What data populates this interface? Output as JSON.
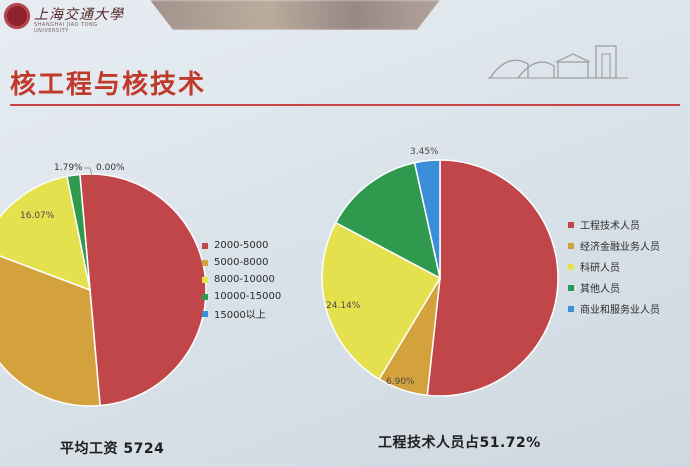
{
  "header": {
    "logo_text": "上海交通大學",
    "logo_sub": "SHANGHAI JIAO TONG UNIVERSITY",
    "title": "核工程与核技术"
  },
  "colors": {
    "red": "#c0464a",
    "orange": "#d4a23c",
    "yellow": "#e5e04e",
    "green": "#2f9a4e",
    "blue": "#3a8fd8",
    "title": "#c0392b"
  },
  "chart_data": [
    {
      "type": "pie",
      "title": "",
      "caption": "平均工资 5724",
      "categories": [
        "2000-5000",
        "5000-8000",
        "8000-10000",
        "10000-15000",
        "15000以上"
      ],
      "values": [
        50.0,
        32.14,
        16.07,
        1.79,
        0.0
      ],
      "labels": [
        "",
        "",
        "16.07%",
        "1.79%",
        "0.00%"
      ],
      "legend": "right"
    },
    {
      "type": "pie",
      "title": "",
      "caption": "工程技术人员占51.72%",
      "categories": [
        "工程技术人员",
        "经济金融业务人员",
        "科研人员",
        "其他人员",
        "商业和服务业人员"
      ],
      "values": [
        51.72,
        6.9,
        24.14,
        13.79,
        3.45
      ],
      "labels": [
        "",
        "6.90%",
        "24.14%",
        "",
        "3.45%"
      ],
      "legend": "right"
    }
  ]
}
